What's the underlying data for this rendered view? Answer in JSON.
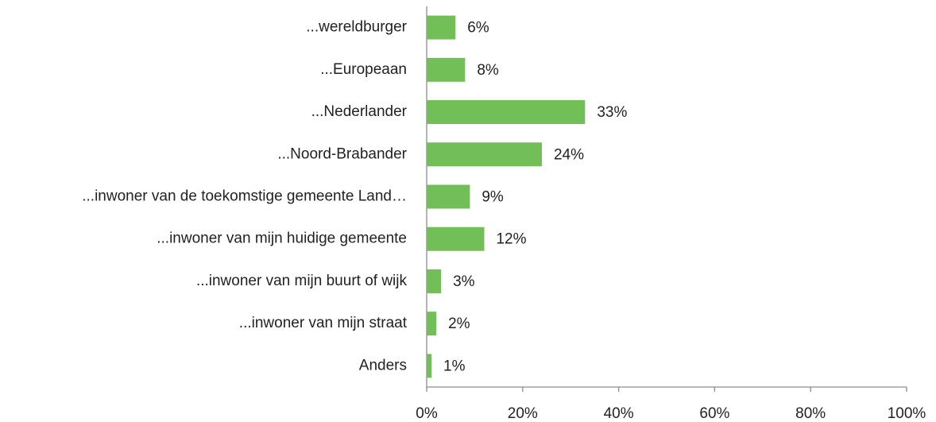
{
  "chart_data": {
    "type": "barh",
    "categories": [
      "...wereldburger",
      "...Europeaan",
      "...Nederlander",
      "...Noord-Brabander",
      "...inwoner van de toekomstige gemeente Land…",
      "...inwoner van mijn huidige gemeente",
      "...inwoner van mijn buurt of wijk",
      "...inwoner van mijn straat",
      "Anders"
    ],
    "values": [
      6,
      8,
      33,
      24,
      9,
      12,
      3,
      2,
      1
    ],
    "value_labels": [
      "6%",
      "8%",
      "33%",
      "24%",
      "9%",
      "12%",
      "3%",
      "2%",
      "1%"
    ],
    "color": "#71bf56",
    "xlim": [
      0,
      100
    ],
    "xticks": [
      {
        "value": 0,
        "label": "0%"
      },
      {
        "value": 20,
        "label": "20%"
      },
      {
        "value": 40,
        "label": "40%"
      },
      {
        "value": 60,
        "label": "60%"
      },
      {
        "value": 80,
        "label": "80%"
      },
      {
        "value": 100,
        "label": "100%"
      }
    ],
    "grid": false
  }
}
